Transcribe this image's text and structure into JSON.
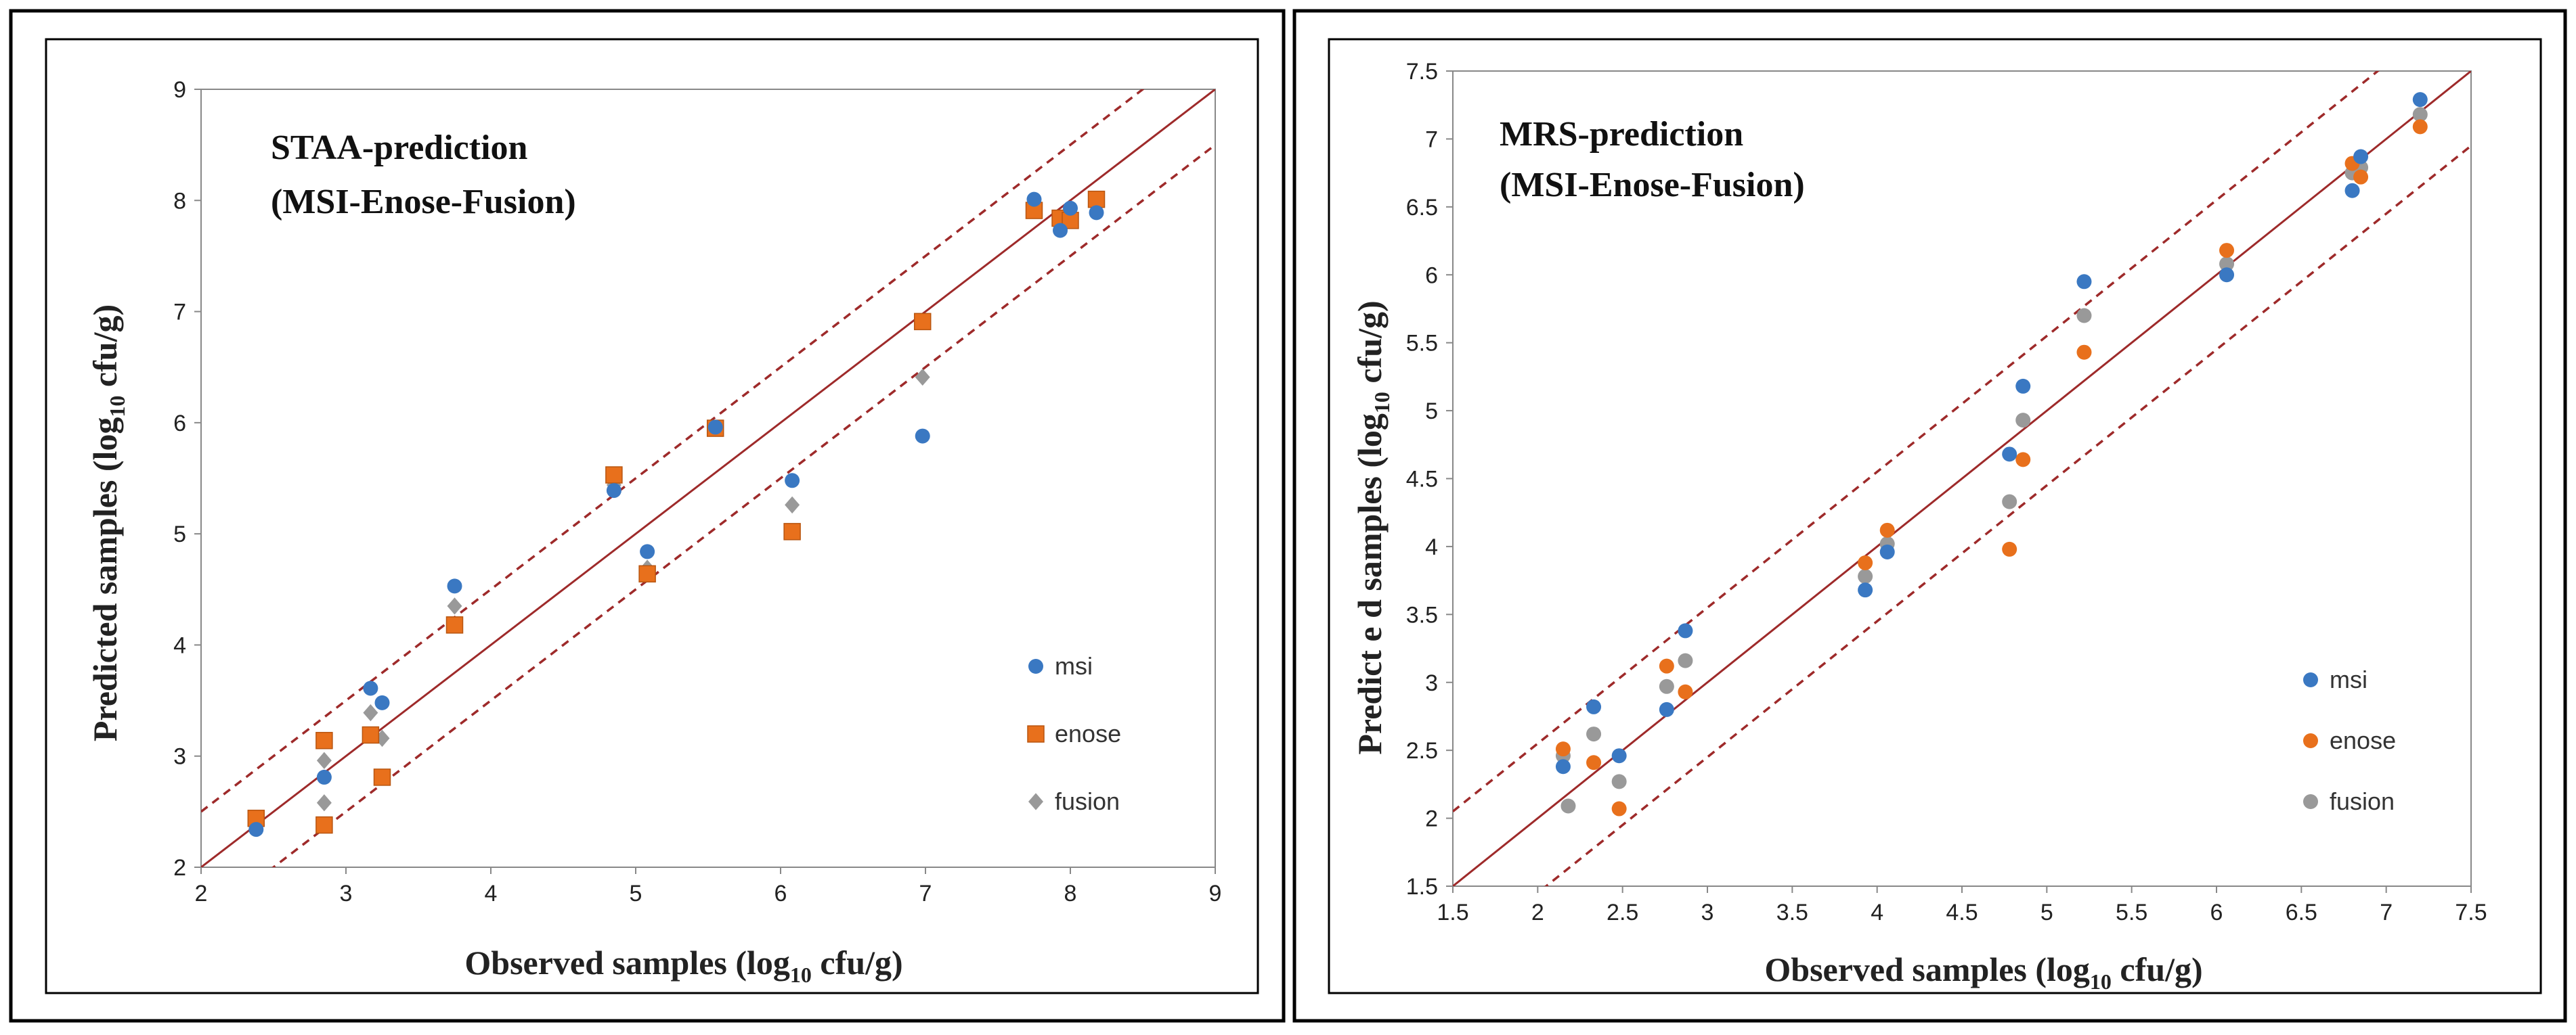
{
  "colors": {
    "msi": "#3a78c2",
    "enose": "#e8701c",
    "fusion": "#999999",
    "line": "#9e2a2a",
    "frame": "#000000"
  },
  "chart_data": [
    {
      "type": "scatter",
      "title_line1": "STAA-prediction",
      "title_line2": "(MSI-Enose-Fusion)",
      "xlabel_main": "Observed  samples (log",
      "xlabel_sub": "10",
      "xlabel_end": " cfu/g)",
      "ylabel_main": "Predicted  samples (log",
      "ylabel_sub": "10",
      "ylabel_end": " cfu/g)",
      "xlim": [
        2,
        9
      ],
      "ylim": [
        2,
        9
      ],
      "xticks": [
        "2",
        "3",
        "4",
        "5",
        "6",
        "7",
        "8",
        "9"
      ],
      "yticks": [
        "2",
        "3",
        "4",
        "5",
        "6",
        "7",
        "8",
        "9"
      ],
      "band_offset": 0.5,
      "legend_placement": "bottom-right",
      "series": [
        {
          "name": "msi",
          "marker": "circle",
          "points": [
            [
              2.38,
              2.34
            ],
            [
              2.85,
              2.81
            ],
            [
              3.17,
              3.61
            ],
            [
              3.25,
              3.48
            ],
            [
              3.75,
              4.53
            ],
            [
              4.85,
              5.39
            ],
            [
              5.08,
              4.84
            ],
            [
              5.55,
              5.96
            ],
            [
              6.08,
              5.48
            ],
            [
              6.98,
              5.88
            ],
            [
              7.75,
              8.01
            ],
            [
              7.93,
              7.73
            ],
            [
              8.0,
              7.93
            ],
            [
              8.18,
              7.89
            ]
          ]
        },
        {
          "name": "enose",
          "marker": "square",
          "points": [
            [
              2.38,
              2.44
            ],
            [
              2.85,
              3.14
            ],
            [
              2.85,
              2.38
            ],
            [
              3.17,
              3.19
            ],
            [
              3.25,
              2.81
            ],
            [
              3.75,
              4.18
            ],
            [
              4.85,
              5.53
            ],
            [
              5.08,
              4.64
            ],
            [
              5.55,
              5.95
            ],
            [
              6.08,
              5.02
            ],
            [
              6.98,
              6.91
            ],
            [
              7.75,
              7.91
            ],
            [
              7.93,
              7.84
            ],
            [
              8.0,
              7.82
            ],
            [
              8.18,
              8.01
            ]
          ]
        },
        {
          "name": "fusion",
          "marker": "diamond",
          "points": [
            [
              2.38,
              2.38
            ],
            [
              2.85,
              2.96
            ],
            [
              2.85,
              2.58
            ],
            [
              3.17,
              3.39
            ],
            [
              3.25,
              3.16
            ],
            [
              3.75,
              4.35
            ],
            [
              4.85,
              5.44
            ],
            [
              5.08,
              4.69
            ],
            [
              5.55,
              5.95
            ],
            [
              6.08,
              5.26
            ],
            [
              6.98,
              6.41
            ],
            [
              7.75,
              7.93
            ],
            [
              7.93,
              7.78
            ],
            [
              8.0,
              7.89
            ],
            [
              8.18,
              7.96
            ]
          ]
        }
      ]
    },
    {
      "type": "scatter",
      "title_line1": "MRS-prediction",
      "title_line2": "(MSI-Enose-Fusion)",
      "xlabel_main": "Observed samples (log",
      "xlabel_sub": "10",
      "xlabel_end": " cfu/g)",
      "ylabel_main": "Predict e d samples (log",
      "ylabel_sub": "10",
      "ylabel_end": " cfu/g)",
      "xlim": [
        1.5,
        7.5
      ],
      "ylim": [
        1.5,
        7.5
      ],
      "xticks": [
        "1.5",
        "2",
        "2.5",
        "3",
        "3.5",
        "4",
        "4.5",
        "5",
        "5.5",
        "6",
        "6.5",
        "7",
        "7.5"
      ],
      "yticks": [
        "1.5",
        "2",
        "2.5",
        "3",
        "3.5",
        "4",
        "4.5",
        "5",
        "5.5",
        "6",
        "6.5",
        "7",
        "7.5"
      ],
      "band_offset": 0.55,
      "legend_placement": "bottom-right",
      "series": [
        {
          "name": "msi",
          "marker": "circle",
          "points": [
            [
              2.15,
              2.38
            ],
            [
              2.33,
              2.82
            ],
            [
              2.48,
              2.46
            ],
            [
              2.76,
              2.8
            ],
            [
              2.87,
              3.38
            ],
            [
              3.93,
              3.68
            ],
            [
              4.06,
              3.96
            ],
            [
              4.78,
              4.68
            ],
            [
              4.86,
              5.18
            ],
            [
              5.22,
              5.95
            ],
            [
              6.06,
              6.0
            ],
            [
              6.8,
              6.62
            ],
            [
              6.85,
              6.87
            ],
            [
              7.2,
              7.29
            ]
          ]
        },
        {
          "name": "enose",
          "marker": "circle",
          "points": [
            [
              2.15,
              2.51
            ],
            [
              2.33,
              2.41
            ],
            [
              2.48,
              2.07
            ],
            [
              2.76,
              3.12
            ],
            [
              2.87,
              2.93
            ],
            [
              3.93,
              3.88
            ],
            [
              4.06,
              4.12
            ],
            [
              4.78,
              3.98
            ],
            [
              4.86,
              4.64
            ],
            [
              5.22,
              5.43
            ],
            [
              6.06,
              6.18
            ],
            [
              6.8,
              6.82
            ],
            [
              6.85,
              6.72
            ],
            [
              7.2,
              7.09
            ]
          ]
        },
        {
          "name": "fusion",
          "marker": "circle",
          "points": [
            [
              2.15,
              2.46
            ],
            [
              2.18,
              2.09
            ],
            [
              2.33,
              2.62
            ],
            [
              2.48,
              2.27
            ],
            [
              2.76,
              2.97
            ],
            [
              2.87,
              3.16
            ],
            [
              3.93,
              3.78
            ],
            [
              4.06,
              4.02
            ],
            [
              4.78,
              4.33
            ],
            [
              4.86,
              4.93
            ],
            [
              5.22,
              5.7
            ],
            [
              6.06,
              6.08
            ],
            [
              6.8,
              6.75
            ],
            [
              6.85,
              6.79
            ],
            [
              7.2,
              7.18
            ]
          ]
        }
      ]
    }
  ]
}
